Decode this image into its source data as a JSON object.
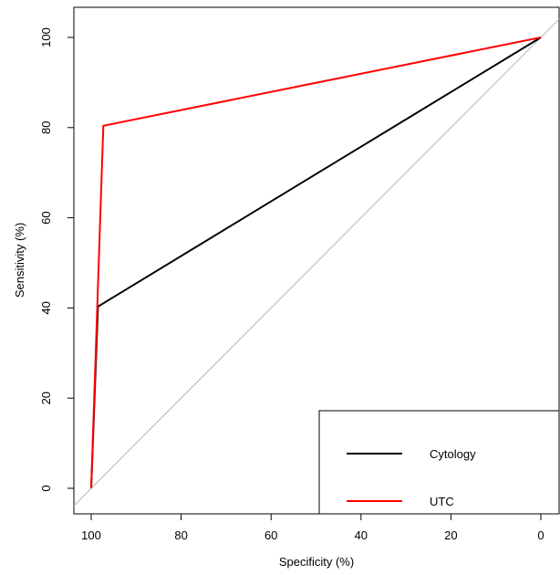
{
  "chart_data": {
    "type": "line",
    "title": "",
    "xlabel": "Specificity (%)",
    "ylabel": "Sensitivity (%)",
    "xlim": [
      100,
      0
    ],
    "ylim": [
      0,
      100
    ],
    "x_reversed": true,
    "xticks": [
      100,
      80,
      60,
      40,
      20,
      0
    ],
    "yticks": [
      0,
      20,
      40,
      60,
      80,
      100
    ],
    "xtick_labels": [
      "100",
      "80",
      "60",
      "40",
      "20",
      "0"
    ],
    "ytick_labels": [
      "0",
      "20",
      "40",
      "60",
      "80",
      "100"
    ],
    "grid": false,
    "legend_position": "bottom-right",
    "reference_line": {
      "points": [
        [
          100,
          0
        ],
        [
          0,
          100
        ]
      ],
      "color": "#b3b3b3"
    },
    "series": [
      {
        "name": "Cytology",
        "color": "#000000",
        "points": [
          [
            100,
            0
          ],
          [
            98.5,
            40.3
          ],
          [
            0,
            100
          ]
        ]
      },
      {
        "name": "UTC",
        "color": "#ff0000",
        "points": [
          [
            100,
            0
          ],
          [
            97.3,
            80.4
          ],
          [
            0,
            100
          ]
        ]
      }
    ]
  }
}
